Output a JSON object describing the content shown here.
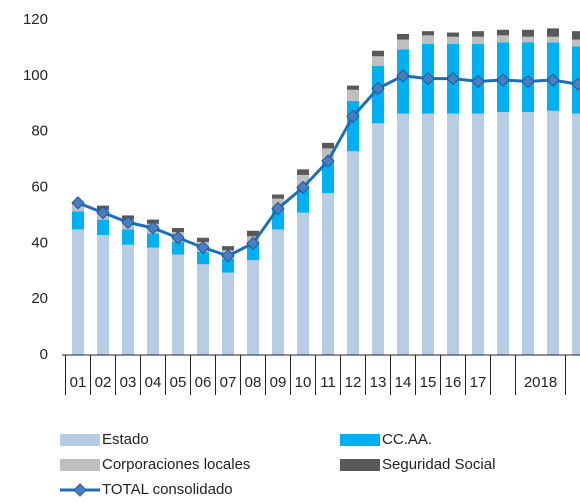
{
  "chart_data": {
    "type": "stacked-bar-line",
    "categories": [
      "01",
      "02",
      "03",
      "04",
      "05",
      "06",
      "07",
      "08",
      "09",
      "10",
      "11",
      "12",
      "13",
      "14",
      "15",
      "16",
      "17",
      null,
      null,
      null,
      null
    ],
    "x_group": {
      "label": "2018",
      "start": 18,
      "end": 19
    },
    "series": [
      {
        "name": "Estado",
        "color": "#b8cce4",
        "kind": "bar",
        "values": [
          45,
          43,
          39.5,
          38.5,
          36,
          32.5,
          29.5,
          34,
          45,
          51,
          58,
          73,
          83,
          86.5,
          86.5,
          86.5,
          86.5,
          87,
          87,
          87.5,
          86.5
        ]
      },
      {
        "name": "CC.AA.",
        "color": "#00b0f0",
        "kind": "bar",
        "values": [
          6.5,
          5.5,
          5.5,
          5,
          4.5,
          4.5,
          5,
          5.5,
          7.5,
          9,
          11,
          18,
          20.5,
          23,
          25,
          25,
          25,
          25,
          25,
          24.5,
          24
        ]
      },
      {
        "name": "Corporaciones locales",
        "color": "#bfbfbf",
        "kind": "bar",
        "values": [
          2.5,
          3.5,
          3.5,
          3.5,
          3.5,
          3.5,
          3,
          3,
          3.5,
          4.5,
          5,
          4,
          3.5,
          3.5,
          3,
          2.5,
          2.5,
          2.5,
          2,
          2,
          2.5
        ]
      },
      {
        "name": "Seguridad Social",
        "color": "#595959",
        "kind": "bar",
        "values": [
          0.5,
          1.5,
          1.5,
          1.5,
          1.5,
          1.5,
          1.5,
          2,
          1.5,
          2,
          2,
          1.5,
          2,
          2,
          1.5,
          1.5,
          2,
          2,
          2.5,
          3,
          3
        ]
      },
      {
        "name": "TOTAL consolidado",
        "color": "#1f6fb5",
        "kind": "line",
        "values": [
          54.5,
          51,
          47.5,
          45.5,
          42,
          38.5,
          35.5,
          40,
          52.5,
          60,
          69.5,
          85.5,
          95.5,
          100,
          99,
          99,
          98,
          98.5,
          98,
          98.5,
          97
        ]
      }
    ],
    "ylim": [
      0,
      120
    ],
    "yticks": [
      0,
      20,
      40,
      60,
      80,
      100,
      120
    ],
    "grid": false
  }
}
